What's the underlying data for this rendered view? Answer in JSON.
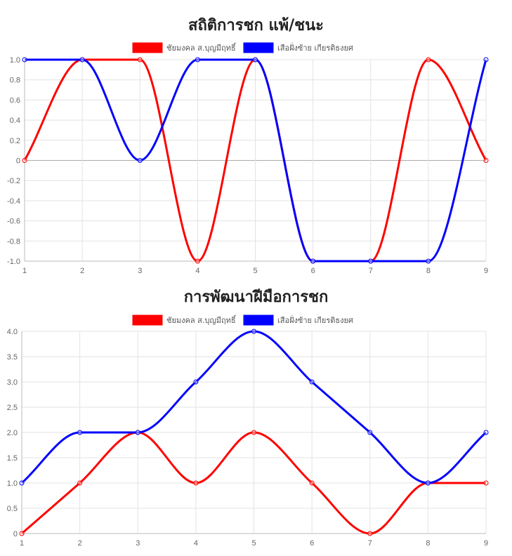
{
  "chart_data": [
    {
      "type": "line",
      "title": "สถิติการชก แพ้/ชนะ",
      "categories": [
        "1",
        "2",
        "3",
        "4",
        "5",
        "6",
        "7",
        "8",
        "9"
      ],
      "ylim": [
        -1,
        1
      ],
      "yticks": [
        "1.0",
        "0.8",
        "0.6",
        "0.4",
        "0.2",
        "0",
        "-0.2",
        "-0.4",
        "-0.6",
        "-0.8",
        "-1.0"
      ],
      "ytick_values": [
        1.0,
        0.8,
        0.6,
        0.4,
        0.2,
        0,
        -0.2,
        -0.4,
        -0.6,
        -0.8,
        -1.0
      ],
      "grid": true,
      "legend_position": "top",
      "series": [
        {
          "name": "ชัยมงคล ส.บุญมีฤทธิ์",
          "color": "#ff0000",
          "values": [
            0,
            1,
            1,
            -1,
            1,
            -1,
            -1,
            1,
            0
          ]
        },
        {
          "name": "เสือฝั่งซ้าย เกียรติธงยศ",
          "color": "#0000ff",
          "values": [
            1,
            1,
            0,
            1,
            1,
            -1,
            -1,
            -1,
            1
          ]
        }
      ]
    },
    {
      "type": "line",
      "title": "การพัฒนาฝีมือการชก",
      "categories": [
        "1",
        "2",
        "3",
        "4",
        "5",
        "6",
        "7",
        "8",
        "9"
      ],
      "ylim": [
        0,
        4
      ],
      "yticks": [
        "4.0",
        "3.5",
        "3.0",
        "2.5",
        "2.0",
        "1.5",
        "1.0",
        "0.5",
        "0"
      ],
      "ytick_values": [
        4.0,
        3.5,
        3.0,
        2.5,
        2.0,
        1.5,
        1.0,
        0.5,
        0
      ],
      "grid": true,
      "legend_position": "top",
      "series": [
        {
          "name": "ชัยมงคล ส.บุญมีฤทธิ์",
          "color": "#ff0000",
          "values": [
            0,
            1,
            2,
            1,
            2,
            1,
            0,
            1,
            1
          ]
        },
        {
          "name": "เสือฝั่งซ้าย เกียรติธงยศ",
          "color": "#0000ff",
          "values": [
            1,
            2,
            2,
            3,
            4,
            3,
            2,
            1,
            2
          ]
        }
      ]
    }
  ]
}
